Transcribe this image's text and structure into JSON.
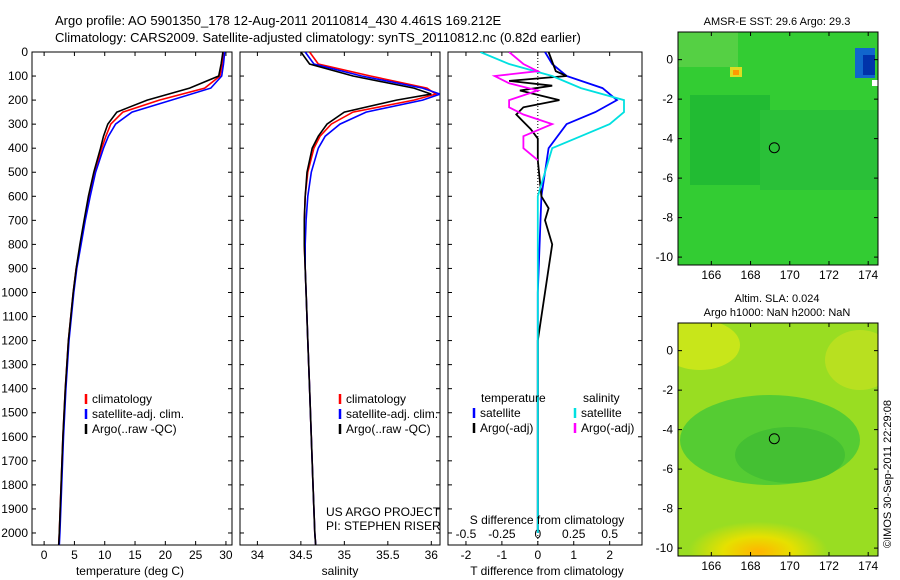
{
  "header": {
    "line1": "Argo profile: AO 5901350_178 12-Aug-2011 20110814_430 4.461S 169.212E",
    "line2": "Climatology: CARS2009. Satellite-adjusted climatology: synTS_20110812.nc (0.82d earlier)"
  },
  "footer": {
    "credit_line1": "US ARGO PROJECT",
    "credit_line2": "PI: STEPHEN RISER",
    "timestamp": "©IMOS 30-Sep-2011 22:29:08"
  },
  "colors": {
    "climatology": "#ff0000",
    "satellite": "#0000ff",
    "argo": "#000000",
    "salinity_satellite": "#00e0e0",
    "salinity_argo": "#ff00ff",
    "map_fill": "#33cc33"
  },
  "chart_data": [
    {
      "type": "line",
      "id": "temperature",
      "xlabel": "temperature (deg C)",
      "ylabel": "",
      "xlim": [
        -2,
        31
      ],
      "ylim": [
        2050,
        0
      ],
      "xticks": [
        "0",
        "5",
        "10",
        "15",
        "20",
        "25",
        "30"
      ],
      "yticks": [
        "0",
        "100",
        "200",
        "300",
        "400",
        "500",
        "600",
        "700",
        "800",
        "900",
        "1000",
        "1100",
        "1200",
        "1300",
        "1400",
        "1500",
        "1600",
        "1700",
        "1800",
        "1900",
        "2000"
      ],
      "legend": [
        "climatology",
        "satellite-adj. clim.",
        "Argo(..raw -QC)"
      ],
      "depth": [
        0,
        50,
        100,
        150,
        200,
        250,
        300,
        350,
        400,
        500,
        600,
        700,
        800,
        900,
        1000,
        1200,
        1400,
        1600,
        1800,
        2000,
        2050
      ],
      "series": [
        {
          "name": "climatology",
          "values": [
            29.6,
            29.4,
            29.0,
            26.5,
            19.0,
            13.0,
            11.0,
            10.2,
            9.5,
            8.4,
            7.5,
            6.7,
            6.0,
            5.3,
            4.8,
            4.0,
            3.5,
            3.1,
            2.8,
            2.5,
            2.4
          ]
        },
        {
          "name": "satellite-adj. clim.",
          "values": [
            29.8,
            29.6,
            29.3,
            27.5,
            21.0,
            14.5,
            11.8,
            10.6,
            9.8,
            8.5,
            7.6,
            6.8,
            6.1,
            5.4,
            4.9,
            4.1,
            3.6,
            3.2,
            2.9,
            2.6,
            2.5
          ]
        },
        {
          "name": "Argo(..raw -QC)",
          "values": [
            29.5,
            29.2,
            28.8,
            24.0,
            17.0,
            12.0,
            10.5,
            9.8,
            9.3,
            8.2,
            7.3,
            6.6,
            5.9,
            5.3,
            4.8,
            4.0,
            3.5,
            3.1,
            2.8,
            2.5,
            2.4
          ]
        }
      ]
    },
    {
      "type": "line",
      "id": "salinity",
      "xlabel": "salinity",
      "xlim": [
        33.8,
        36.1
      ],
      "ylim": [
        2050,
        0
      ],
      "xticks": [
        "34",
        "34.5",
        "35",
        "35.5",
        "36"
      ],
      "legend": [
        "climatology",
        "satellite-adj. clim.",
        "Argo(..raw -QC)"
      ],
      "depth": [
        0,
        50,
        100,
        150,
        175,
        200,
        250,
        300,
        350,
        400,
        500,
        600,
        700,
        800,
        900,
        1000,
        1200,
        1400,
        1600,
        1800,
        2000,
        2050
      ],
      "series": [
        {
          "name": "climatology",
          "values": [
            34.6,
            34.7,
            35.3,
            35.95,
            36.05,
            35.8,
            35.1,
            34.85,
            34.72,
            34.65,
            34.58,
            34.55,
            34.54,
            34.54,
            34.55,
            34.56,
            34.58,
            34.6,
            34.62,
            34.64,
            34.66,
            34.67
          ]
        },
        {
          "name": "satellite-adj. clim.",
          "values": [
            34.55,
            34.65,
            35.2,
            35.9,
            36.1,
            35.9,
            35.25,
            34.95,
            34.78,
            34.7,
            34.62,
            34.58,
            34.56,
            34.55,
            34.55,
            34.56,
            34.58,
            34.6,
            34.62,
            34.64,
            34.66,
            34.67
          ]
        },
        {
          "name": "Argo(..raw -QC)",
          "values": [
            34.5,
            34.6,
            35.1,
            35.8,
            36.0,
            35.6,
            35.0,
            34.8,
            34.7,
            34.63,
            34.57,
            34.55,
            34.54,
            34.54,
            34.55,
            34.56,
            34.58,
            34.6,
            34.62,
            34.64,
            34.66,
            34.67
          ]
        }
      ]
    },
    {
      "type": "line",
      "id": "difference",
      "xlabel_top": "S difference from climatology",
      "xlabel": "T difference from climatology",
      "xlim": [
        -2.5,
        2.9
      ],
      "ylim": [
        2050,
        0
      ],
      "xticks": [
        "-2",
        "-1",
        "0",
        "1",
        "2"
      ],
      "top_ticks": [
        {
          "label": "-0.5",
          "x": -0.5
        },
        {
          "label": "-0.25",
          "x": -0.25
        },
        {
          "label": "0",
          "x": 0
        },
        {
          "label": "0.25",
          "x": 0.25
        },
        {
          "label": "0.5",
          "x": 0.5
        }
      ],
      "legend_left_title": "temperature",
      "legend_right_title": "salinity",
      "legend_left": [
        "satellite",
        "Argo(-adj)"
      ],
      "legend_right": [
        "satellite",
        "Argo(-adj)"
      ],
      "series": [
        {
          "name": "temperature satellite",
          "depth": [
            0,
            50,
            100,
            150,
            200,
            250,
            300,
            400,
            600,
            1000,
            2000
          ],
          "values": [
            0.2,
            0.4,
            0.8,
            1.8,
            2.2,
            1.6,
            0.8,
            0.3,
            0.1,
            0.0,
            0.0
          ]
        },
        {
          "name": "temperature Argo(-adj)",
          "depth": [
            0,
            80,
            100,
            120,
            140,
            160,
            200,
            230,
            260,
            290,
            320,
            360,
            400,
            450,
            600,
            650,
            700,
            800,
            900,
            1000,
            1100,
            1200,
            1400,
            2000
          ],
          "values": [
            0.3,
            0.5,
            0.8,
            -0.8,
            0.4,
            -0.5,
            0.6,
            -0.4,
            -0.6,
            -0.4,
            -0.2,
            0.0,
            0.0,
            0.0,
            0.1,
            0.3,
            0.2,
            0.4,
            0.3,
            0.2,
            0.1,
            0.0,
            0.0,
            0.0
          ]
        },
        {
          "name": "salinity satellite",
          "depth": [
            0,
            50,
            100,
            150,
            200,
            250,
            300,
            350,
            400,
            600,
            1000,
            2000
          ],
          "values": [
            -0.4,
            -0.2,
            0.1,
            0.3,
            0.6,
            0.6,
            0.5,
            0.3,
            0.1,
            0.0,
            0.0,
            0.0
          ]
        },
        {
          "name": "salinity Argo(-adj)",
          "depth": [
            0,
            50,
            80,
            100,
            130,
            160,
            200,
            230,
            260,
            300,
            350,
            400,
            450
          ],
          "values": [
            -0.2,
            -0.1,
            0.0,
            -0.3,
            -0.2,
            0.0,
            -0.2,
            -0.2,
            -0.1,
            0.1,
            -0.1,
            -0.1,
            0.0
          ]
        }
      ]
    },
    {
      "type": "heatmap",
      "id": "sst-map",
      "title": "AMSR-E SST: 29.6 Argo: 29.3",
      "xlim": [
        164.3,
        174.5
      ],
      "ylim": [
        -10.4,
        1.4
      ],
      "xticks": [
        "166",
        "168",
        "170",
        "172",
        "174"
      ],
      "yticks": [
        "0",
        "-2",
        "-4",
        "-6",
        "-8",
        "-10"
      ],
      "marker": {
        "lon": 169.212,
        "lat": -4.461
      }
    },
    {
      "type": "heatmap",
      "id": "sla-map",
      "title_line1": "Altim. SLA: 0.024",
      "title_line2": "Argo h1000: NaN h2000: NaN",
      "xlim": [
        164.3,
        174.5
      ],
      "ylim": [
        -10.4,
        1.4
      ],
      "xticks": [
        "166",
        "168",
        "170",
        "172",
        "174"
      ],
      "yticks": [
        "0",
        "-2",
        "-4",
        "-6",
        "-8",
        "-10"
      ],
      "marker": {
        "lon": 169.212,
        "lat": -4.461
      }
    }
  ]
}
